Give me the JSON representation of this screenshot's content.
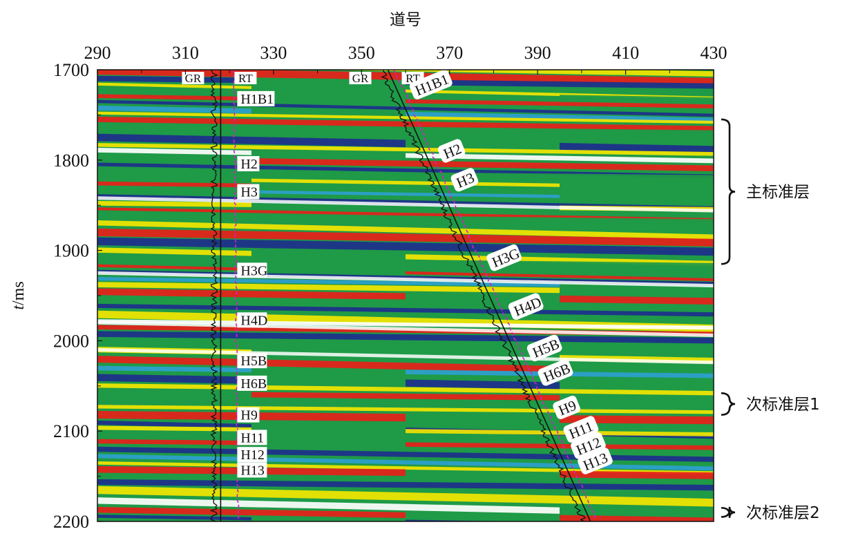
{
  "chart_data": {
    "type": "heatmap",
    "subtype": "seismic-section-with-well-logs",
    "xlabel": "道号",
    "ylabel_italic": "t",
    "ylabel_unit": "/ms",
    "xlim": [
      290,
      430
    ],
    "ylim": [
      1700,
      2200
    ],
    "y_inverted": true,
    "x_ticks": [
      290,
      310,
      330,
      350,
      370,
      390,
      410,
      430
    ],
    "y_ticks": [
      1700,
      1800,
      1900,
      2000,
      2100,
      2200
    ],
    "colormap": [
      "#1d2f8c",
      "#2ea0d0",
      "#1f9a47",
      "#f3e600",
      "#ffffff",
      "#e8201a"
    ],
    "wells": [
      {
        "curves": [
          "GR",
          "RT"
        ],
        "type": "vertical",
        "trace_top": 318,
        "trace_bottom": 318,
        "rt_trace_top": 321,
        "rt_trace_bottom": 322,
        "horizons": [
          {
            "name": "H1B1",
            "t": 1732
          },
          {
            "name": "H2",
            "t": 1804
          },
          {
            "name": "H3",
            "t": 1835
          },
          {
            "name": "H3G",
            "t": 1922
          },
          {
            "name": "H4D",
            "t": 1977
          },
          {
            "name": "H5B",
            "t": 2022
          },
          {
            "name": "H6B",
            "t": 2047
          },
          {
            "name": "H9",
            "t": 2082
          },
          {
            "name": "H11",
            "t": 2107
          },
          {
            "name": "H12",
            "t": 2126
          },
          {
            "name": "H13",
            "t": 2143
          }
        ]
      },
      {
        "curves": [
          "GR",
          "RT"
        ],
        "type": "deviated",
        "trace_top": 356,
        "trace_bottom": 402,
        "horizons": [
          {
            "name": "H1B1",
            "t": 1728
          },
          {
            "name": "H2",
            "t": 1798
          },
          {
            "name": "H3",
            "t": 1830
          },
          {
            "name": "H3G",
            "t": 1918
          },
          {
            "name": "H4D",
            "t": 1972
          },
          {
            "name": "H5B",
            "t": 2018
          },
          {
            "name": "H6B",
            "t": 2045
          },
          {
            "name": "H9",
            "t": 2082
          },
          {
            "name": "H11",
            "t": 2108
          },
          {
            "name": "H12",
            "t": 2126
          },
          {
            "name": "H13",
            "t": 2143
          }
        ]
      }
    ],
    "brackets": [
      {
        "label": "主标准层",
        "t_start": 1755,
        "t_end": 1915
      },
      {
        "label": "次标准层1",
        "t_start": 2058,
        "t_end": 2082
      },
      {
        "label": "次标准层2",
        "t_start": 2185,
        "t_end": 2195
      }
    ]
  }
}
